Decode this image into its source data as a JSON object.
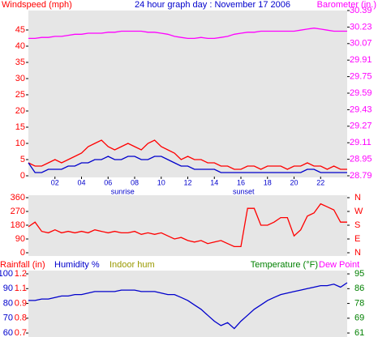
{
  "chart_data": [
    {
      "type": "line",
      "title": "24 hour graph day : November 17 2006",
      "y_label": "Windspeed (mph)",
      "y2_label": "Barometer (in.)",
      "x": [
        0,
        0.5,
        1,
        1.5,
        2,
        2.5,
        3,
        3.5,
        4,
        4.5,
        5,
        5.5,
        6,
        6.5,
        7,
        7.5,
        8,
        8.5,
        9,
        9.5,
        10,
        10.5,
        11,
        11.5,
        12,
        12.5,
        13,
        13.5,
        14,
        14.5,
        15,
        15.5,
        16,
        16.5,
        17,
        17.5,
        18,
        18.5,
        19,
        19.5,
        20,
        20.5,
        21,
        21.5,
        22,
        22.5,
        23,
        23.5,
        24
      ],
      "xlim": [
        0,
        24
      ],
      "xticks": [
        {
          "value": 2,
          "label": "02"
        },
        {
          "value": 4,
          "label": "04"
        },
        {
          "value": 6,
          "label": "06"
        },
        {
          "value": 8,
          "label": "08"
        },
        {
          "value": 10,
          "label": "10"
        },
        {
          "value": 12,
          "label": "12"
        },
        {
          "value": 14,
          "label": "14"
        },
        {
          "value": 16,
          "label": "16"
        },
        {
          "value": 18,
          "label": "18"
        },
        {
          "value": 20,
          "label": "20"
        },
        {
          "value": 22,
          "label": "22"
        }
      ],
      "ylim": [
        0,
        51
      ],
      "yticks": [
        0,
        5,
        10,
        15,
        20,
        25,
        30,
        35,
        40,
        45
      ],
      "y2lim": [
        28.79,
        30.39
      ],
      "y2ticks": [
        28.79,
        28.95,
        29.11,
        29.27,
        29.43,
        29.59,
        29.75,
        29.91,
        30.07,
        30.23,
        30.39
      ],
      "annotations": [
        {
          "text": "sunrise",
          "x": 7.1
        },
        {
          "text": "sunset",
          "x": 16.2
        }
      ],
      "series": [
        {
          "color": "#ff0000",
          "values": [
            4,
            3,
            3,
            4,
            5,
            4,
            5,
            6,
            7,
            9,
            10,
            11,
            9,
            8,
            9,
            10,
            9,
            8,
            10,
            11,
            9,
            8,
            7,
            5,
            6,
            5,
            5,
            4,
            4,
            3,
            3,
            2,
            2,
            3,
            3,
            2,
            3,
            3,
            3,
            2,
            3,
            3,
            4,
            3,
            3,
            2,
            3,
            2,
            2
          ]
        },
        {
          "color": "#0000cc",
          "values": [
            4,
            1,
            1,
            2,
            2,
            2,
            3,
            3,
            4,
            4,
            5,
            5,
            6,
            5,
            5,
            6,
            6,
            5,
            5,
            6,
            6,
            5,
            4,
            3,
            3,
            2,
            2,
            2,
            2,
            1,
            1,
            1,
            1,
            1,
            1,
            1,
            1,
            1,
            1,
            1,
            1,
            1,
            2,
            2,
            1,
            1,
            1,
            1,
            1
          ]
        },
        {
          "color": "#ff00ff",
          "axis": "y2",
          "values": [
            30.12,
            30.12,
            30.13,
            30.13,
            30.14,
            30.14,
            30.15,
            30.16,
            30.16,
            30.17,
            30.17,
            30.17,
            30.18,
            30.18,
            30.19,
            30.19,
            30.19,
            30.19,
            30.18,
            30.18,
            30.17,
            30.16,
            30.14,
            30.13,
            30.12,
            30.12,
            30.13,
            30.12,
            30.12,
            30.13,
            30.14,
            30.16,
            30.17,
            30.18,
            30.18,
            30.19,
            30.19,
            30.19,
            30.19,
            30.19,
            30.19,
            30.2,
            30.21,
            30.22,
            30.21,
            30.2,
            30.19,
            30.19,
            30.19
          ]
        }
      ]
    },
    {
      "type": "line",
      "x": [
        0,
        0.5,
        1,
        1.5,
        2,
        2.5,
        3,
        3.5,
        4,
        4.5,
        5,
        5.5,
        6,
        6.5,
        7,
        7.5,
        8,
        8.5,
        9,
        9.5,
        10,
        10.5,
        11,
        11.5,
        12,
        12.5,
        13,
        13.5,
        14,
        14.5,
        15,
        15.5,
        16,
        16.5,
        17,
        17.5,
        18,
        18.5,
        19,
        19.5,
        20,
        20.5,
        21,
        21.5,
        22,
        22.5,
        23,
        23.5,
        24
      ],
      "xlim": [
        0,
        24
      ],
      "ylim": [
        0,
        360
      ],
      "yticks": [
        360,
        270,
        180,
        90,
        0
      ],
      "y2lim": [
        0,
        360
      ],
      "y2ticks": [
        {
          "value": 360,
          "label": "N"
        },
        {
          "value": 270,
          "label": "W"
        },
        {
          "value": 180,
          "label": "S"
        },
        {
          "value": 90,
          "label": "E"
        },
        {
          "value": 0,
          "label": "N"
        }
      ],
      "series": [
        {
          "color": "#ff0000",
          "values": [
            170,
            200,
            140,
            130,
            150,
            130,
            140,
            130,
            140,
            130,
            150,
            140,
            130,
            140,
            130,
            130,
            140,
            120,
            130,
            120,
            130,
            110,
            90,
            100,
            80,
            70,
            80,
            60,
            70,
            80,
            60,
            40,
            40,
            290,
            290,
            180,
            180,
            200,
            230,
            230,
            110,
            150,
            240,
            260,
            320,
            300,
            280,
            200,
            200
          ]
        }
      ]
    },
    {
      "type": "line",
      "y3_label": "Rainfall (in)",
      "y_label": "Humidity %",
      "indoor_label": "Indoor hum",
      "y2_label": "Temperature (°F)",
      "dew_label": "Dew Point",
      "x": [
        0,
        0.5,
        1,
        1.5,
        2,
        2.5,
        3,
        3.5,
        4,
        4.5,
        5,
        5.5,
        6,
        6.5,
        7,
        7.5,
        8,
        8.5,
        9,
        9.5,
        10,
        10.5,
        11,
        11.5,
        12,
        12.5,
        13,
        13.5,
        14,
        14.5,
        15,
        15.5,
        16,
        16.5,
        17,
        17.5,
        18,
        18.5,
        19,
        19.5,
        20,
        20.5,
        21,
        21.5,
        22,
        22.5,
        23,
        23.5,
        24
      ],
      "xlim": [
        0,
        24
      ],
      "ylim": [
        57.3,
        102.2
      ],
      "yticks": [
        100,
        90,
        80,
        70,
        60
      ],
      "y3lim": [
        0.666,
        1.227
      ],
      "y3ticks": [
        1.2,
        {
          "value": 1.075,
          "label": "1.1"
        },
        {
          "value": 0.95,
          "label": "0.9"
        },
        {
          "value": 0.825,
          "label": "0.8"
        },
        0.7
      ],
      "y2lim": [
        58.7,
        96.9
      ],
      "y2ticks": [
        95,
        {
          "value": 86.5,
          "label": "86"
        },
        78,
        {
          "value": 69.5,
          "label": "69"
        },
        61
      ],
      "series": [
        {
          "color": "#0000cc",
          "values": [
            82,
            82,
            83,
            83,
            84,
            85,
            85,
            86,
            86,
            87,
            88,
            88,
            88,
            88,
            89,
            89,
            89,
            88,
            88,
            88,
            87,
            86,
            86,
            84,
            82,
            79,
            76,
            72,
            68,
            65,
            67,
            63,
            68,
            72,
            76,
            79,
            82,
            84,
            86,
            87,
            88,
            89,
            90,
            91,
            92,
            92,
            93,
            91,
            94
          ]
        }
      ]
    }
  ]
}
